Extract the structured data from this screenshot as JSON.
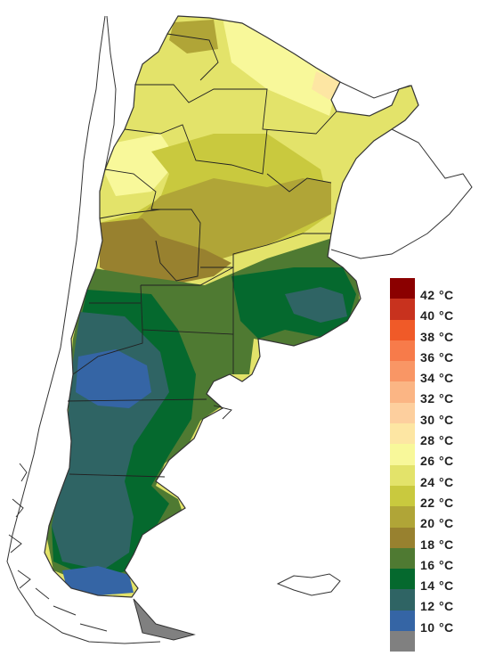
{
  "legend": {
    "items": [
      {
        "label": "42 °C",
        "color": "#8b0000"
      },
      {
        "label": "40 °C",
        "color": "#c8321e"
      },
      {
        "label": "38 °C",
        "color": "#f05a28"
      },
      {
        "label": "36 °C",
        "color": "#f77b4a"
      },
      {
        "label": "34 °C",
        "color": "#f99665"
      },
      {
        "label": "32 °C",
        "color": "#fbb584"
      },
      {
        "label": "30 °C",
        "color": "#fdcf9e"
      },
      {
        "label": "28 °C",
        "color": "#fde6a3"
      },
      {
        "label": "26 °C",
        "color": "#f8f89a"
      },
      {
        "label": "24 °C",
        "color": "#e3e36a"
      },
      {
        "label": "22 °C",
        "color": "#c9c93e"
      },
      {
        "label": "20 °C",
        "color": "#b0a537"
      },
      {
        "label": "18 °C",
        "color": "#98812f"
      },
      {
        "label": "16 °C",
        "color": "#4f7a32"
      },
      {
        "label": "14 °C",
        "color": "#05692e"
      },
      {
        "label": "12 °C",
        "color": "#2f6464"
      },
      {
        "label": "10 °C",
        "color": "#3565a5"
      },
      {
        "label": "",
        "color": "#808080"
      }
    ]
  }
}
